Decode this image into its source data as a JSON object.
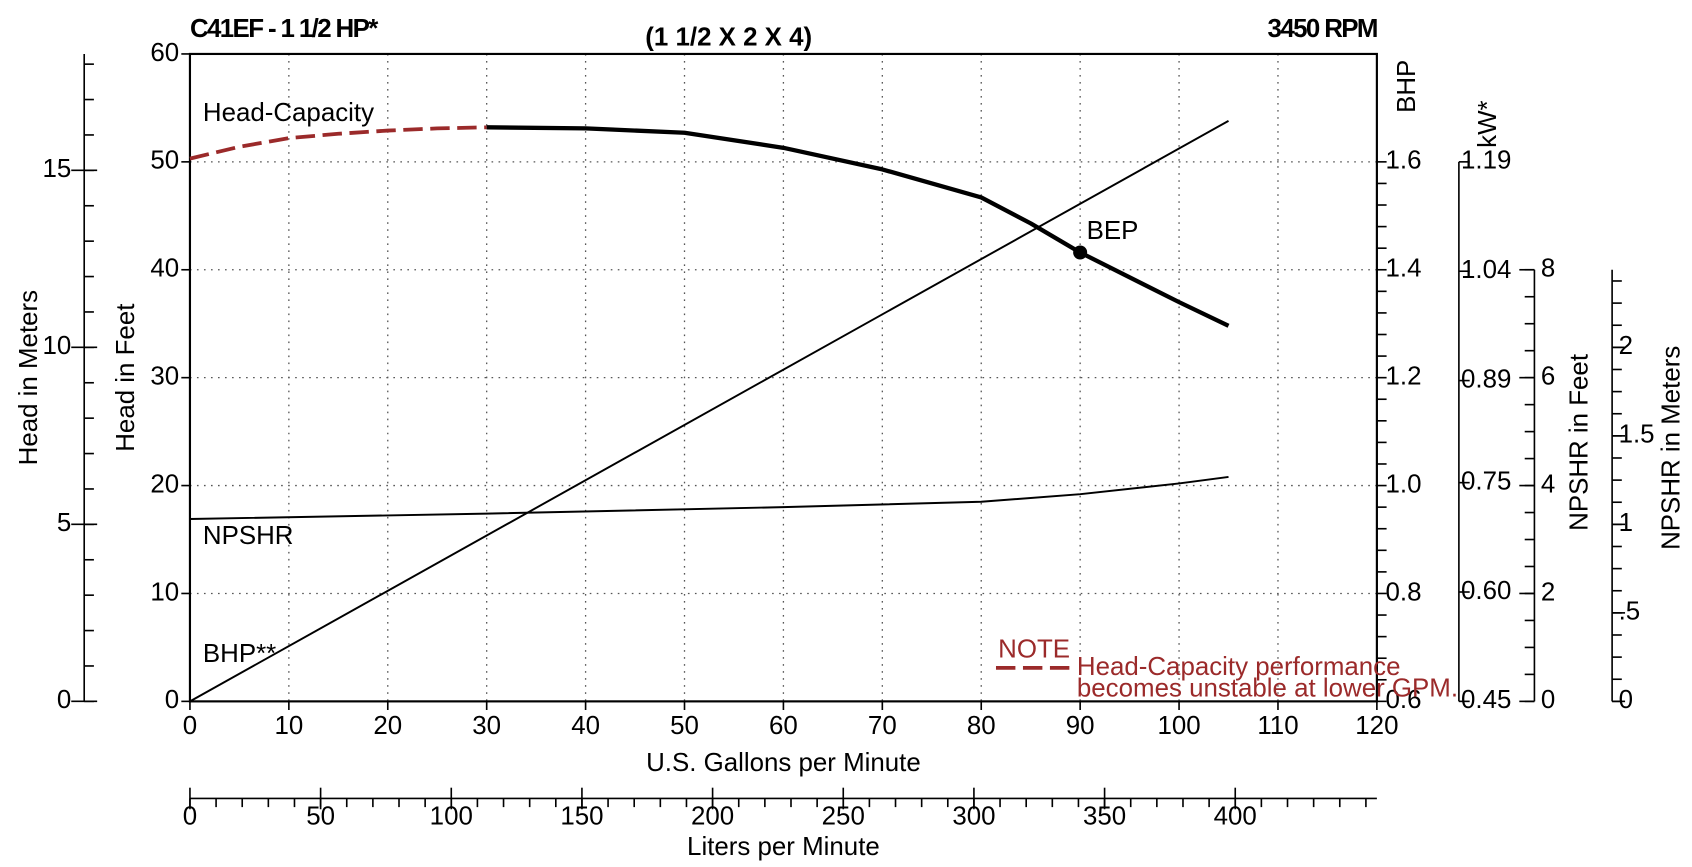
{
  "title": "C41EF - 1 1/2 HP*",
  "subtitle": "(1 1/2 X 2 X 4)",
  "speed": "3450 RPM",
  "chart_data": {
    "type": "line",
    "grid": true,
    "xlabel": "U.S. Gallons per Minute",
    "xlim": [
      0,
      120
    ],
    "xticks": [
      0,
      10,
      20,
      30,
      40,
      50,
      60,
      70,
      80,
      90,
      100,
      110,
      120
    ],
    "x2label": "Liters per Minute",
    "x2lim": [
      0,
      454.2
    ],
    "x2ticks": [
      0,
      50,
      100,
      150,
      200,
      250,
      300,
      350,
      400
    ],
    "x2minor": 10,
    "ylabel": "Head in Feet",
    "ylim": [
      0,
      60
    ],
    "yticks": [
      0,
      10,
      20,
      30,
      40,
      50,
      60
    ],
    "meters_axis": {
      "label": "Head in Meters",
      "lim": [
        0,
        18.288
      ],
      "ticks": [
        0,
        5,
        10,
        15
      ],
      "minor": 1
    },
    "y2label": "BHP",
    "y2lim": [
      0.6,
      1.8
    ],
    "y2ticks": [
      0.6,
      0.8,
      {
        "value": 1.0,
        "label": "1.0"
      },
      1.2,
      1.4,
      1.6
    ],
    "y2minor": 0.04,
    "kw_axis": {
      "label": "kW*",
      "lim": [
        0.45,
        1.19
      ],
      "ticks": [
        0.45,
        {
          "value": 0.6,
          "label": "0.60"
        },
        0.75,
        0.89,
        1.04,
        1.19
      ]
    },
    "npshr_axis": {
      "label": "NPSHR in Feet",
      "lim": [
        0,
        8
      ],
      "ticks": [
        0,
        2,
        4,
        6,
        8
      ],
      "minor": 0.5
    },
    "npshr_m_axis": {
      "label": "NPSHR in Meters",
      "lim": [
        0,
        2.4384
      ],
      "ticks": [
        0,
        {
          "value": 0.5,
          "label": ".5"
        },
        1,
        1.5,
        2
      ],
      "minor": 0.125
    },
    "series": [
      {
        "color": "#9b2a2a",
        "dash": true,
        "x": [
          0,
          5,
          10,
          15,
          20,
          25,
          30
        ],
        "values": [
          50.3,
          51.4,
          52.2,
          52.6,
          52.9,
          53.1,
          53.2
        ]
      },
      {
        "name": "Head-Capacity",
        "color": "#000000",
        "x": [
          30,
          40,
          50,
          60,
          70,
          80,
          85,
          90,
          100,
          105
        ],
        "values": [
          53.2,
          53.1,
          52.7,
          51.3,
          49.3,
          46.7,
          44.3,
          41.6,
          37,
          34.8
        ]
      },
      {
        "name": "BHP**",
        "color": "#000000",
        "axis": "y2",
        "x": [
          0,
          105
        ],
        "values": [
          0.6,
          1.676
        ]
      },
      {
        "name": "NPSHR",
        "color": "#000000",
        "axis": "npshr",
        "x": [
          0,
          30,
          60,
          80,
          90,
          100,
          105
        ],
        "values": [
          3.38,
          3.48,
          3.6,
          3.7,
          3.84,
          4.04,
          4.16
        ]
      }
    ],
    "bep": {
      "label": "BEP",
      "x": 90,
      "y": 41.6
    },
    "note": {
      "title": "NOTE",
      "lines": [
        "Head-Capacity performance",
        "becomes unstable at lower GPM."
      ]
    }
  }
}
